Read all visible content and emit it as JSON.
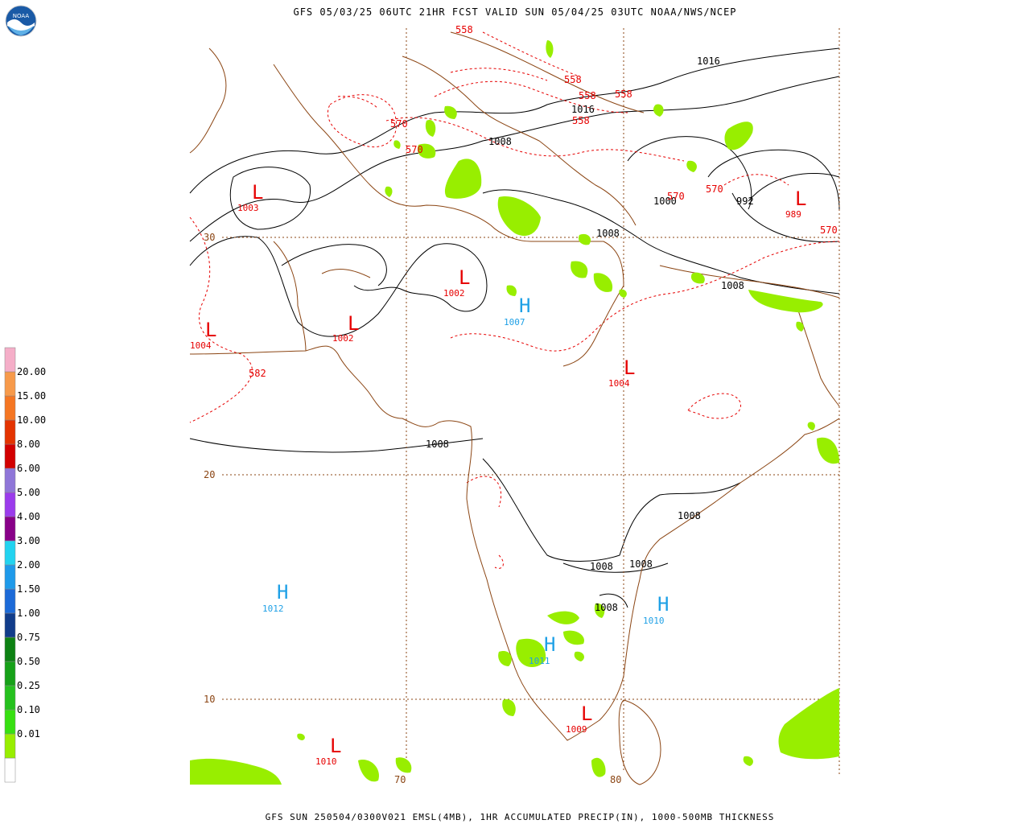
{
  "header": {
    "title": "GFS 05/03/25 06UTC 21HR FCST VALID SUN 05/04/25 03UTC NOAA/NWS/NCEP"
  },
  "footer": {
    "caption": "GFS SUN 250504/0300V021 EMSL(4MB), 1HR ACCUMULATED PRECIP(IN), 1000-500MB THICKNESS"
  },
  "logo": {
    "icon": "noaa-logo-icon",
    "text": "NOAA"
  },
  "colorbar": {
    "bins": [
      {
        "label": "",
        "color": "#ffffff"
      },
      {
        "label": "0.01",
        "color": "#98ee00"
      },
      {
        "label": "0.10",
        "color": "#37e011"
      },
      {
        "label": "0.25",
        "color": "#25c11e"
      },
      {
        "label": "0.50",
        "color": "#16a118"
      },
      {
        "label": "0.75",
        "color": "#0d8113"
      },
      {
        "label": "1.00",
        "color": "#113c8a"
      },
      {
        "label": "1.50",
        "color": "#1c6ad8"
      },
      {
        "label": "2.00",
        "color": "#1e9aea"
      },
      {
        "label": "3.00",
        "color": "#22d3f0"
      },
      {
        "label": "4.00",
        "color": "#880088"
      },
      {
        "label": "5.00",
        "color": "#9b3bec"
      },
      {
        "label": "6.00",
        "color": "#8f76d8"
      },
      {
        "label": "8.00",
        "color": "#d20000"
      },
      {
        "label": "10.00",
        "color": "#e43300"
      },
      {
        "label": "15.00",
        "color": "#f57622"
      },
      {
        "label": "20.00",
        "color": "#f79a4a"
      },
      {
        "label": "",
        "color": "#f5aec8"
      }
    ]
  },
  "grid": {
    "lat_labels": [
      "30",
      "20",
      "10"
    ],
    "lon_labels": [
      "70",
      "80"
    ]
  },
  "pressure_centers": [
    {
      "type": "L",
      "value": "1003"
    },
    {
      "type": "L",
      "value": "1002"
    },
    {
      "type": "L",
      "value": "1002"
    },
    {
      "type": "L",
      "value": "1004"
    },
    {
      "type": "L",
      "value": "1004"
    },
    {
      "type": "L",
      "value": "989"
    },
    {
      "type": "L",
      "value": "1009"
    },
    {
      "type": "L",
      "value": "1010"
    },
    {
      "type": "H",
      "value": "1007"
    },
    {
      "type": "H",
      "value": "1012"
    },
    {
      "type": "H",
      "value": "1011"
    },
    {
      "type": "H",
      "value": "1010"
    }
  ],
  "isobar_labels": [
    "1016",
    "1016",
    "1008",
    "1008",
    "1000",
    "992",
    "1008",
    "1008",
    "1008",
    "1008",
    "1008",
    "1008"
  ],
  "thickness_labels": [
    "558",
    "558",
    "558",
    "558",
    "558",
    "570",
    "570",
    "570",
    "570",
    "570",
    "582"
  ],
  "colors": {
    "low": "#e60000",
    "high": "#1ea0e6",
    "coast": "#8b4513",
    "grid": "#8b4513",
    "isobar": "#000000",
    "thickness": "#e60000",
    "precip": "#98ee00"
  }
}
